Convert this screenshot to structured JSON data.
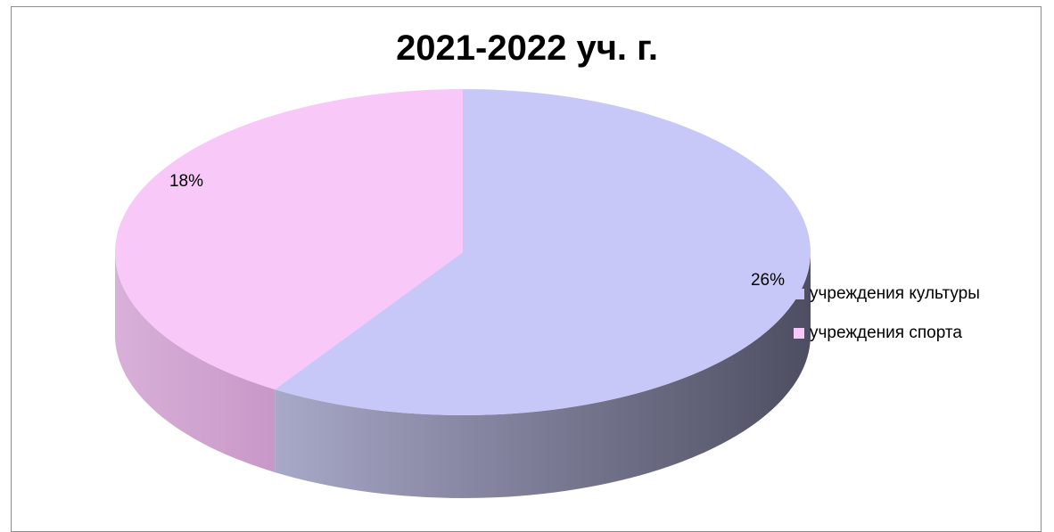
{
  "chart_data": {
    "type": "pie",
    "title": "2021-2022 уч. г.",
    "categories": [
      "учреждения культуры",
      "учреждения спорта"
    ],
    "values": [
      26,
      18
    ],
    "data_labels": [
      "26%",
      "18%"
    ],
    "colors": [
      "#c8c8f8",
      "#f8c8f8"
    ],
    "side_colors": [
      "#6e6e8c",
      "#d8a8d8"
    ],
    "legend_position": "right",
    "three_d": true
  }
}
